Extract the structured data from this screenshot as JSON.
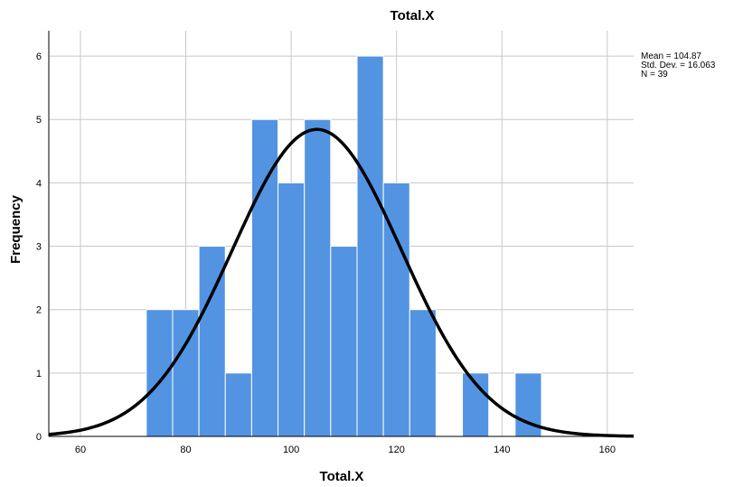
{
  "chart_data": {
    "type": "bar",
    "subtype": "histogram",
    "title": "Total.X",
    "xlabel": "Total.X",
    "ylabel": "Frequency",
    "xlim": [
      54,
      165
    ],
    "ylim": [
      0,
      6.4
    ],
    "x_ticks": [
      60,
      80,
      100,
      120,
      140,
      160
    ],
    "y_ticks": [
      0,
      1,
      2,
      3,
      4,
      5,
      6
    ],
    "bin_width": 5,
    "bins": [
      {
        "start": 72.5,
        "end": 77.5,
        "count": 2
      },
      {
        "start": 77.5,
        "end": 82.5,
        "count": 2
      },
      {
        "start": 82.5,
        "end": 87.5,
        "count": 3
      },
      {
        "start": 87.5,
        "end": 92.5,
        "count": 1
      },
      {
        "start": 92.5,
        "end": 97.5,
        "count": 5
      },
      {
        "start": 97.5,
        "end": 102.5,
        "count": 4
      },
      {
        "start": 102.5,
        "end": 107.5,
        "count": 5
      },
      {
        "start": 107.5,
        "end": 112.5,
        "count": 3
      },
      {
        "start": 112.5,
        "end": 117.5,
        "count": 6
      },
      {
        "start": 117.5,
        "end": 122.5,
        "count": 4
      },
      {
        "start": 122.5,
        "end": 127.5,
        "count": 2
      },
      {
        "start": 127.5,
        "end": 132.5,
        "count": 0
      },
      {
        "start": 132.5,
        "end": 137.5,
        "count": 1
      },
      {
        "start": 137.5,
        "end": 142.5,
        "count": 0
      },
      {
        "start": 142.5,
        "end": 147.5,
        "count": 1
      }
    ],
    "normal_curve": {
      "mean": 104.87,
      "std": 16.063,
      "n": 39
    },
    "stats_text": [
      "Mean = 104.87",
      "Std. Dev. = 16.063",
      "N = 39"
    ],
    "grid": true,
    "colors": {
      "bar_fill": "#5294e2",
      "bar_stroke": "#ffffff",
      "curve": "#000000",
      "grid": "#c8c8c8"
    }
  }
}
